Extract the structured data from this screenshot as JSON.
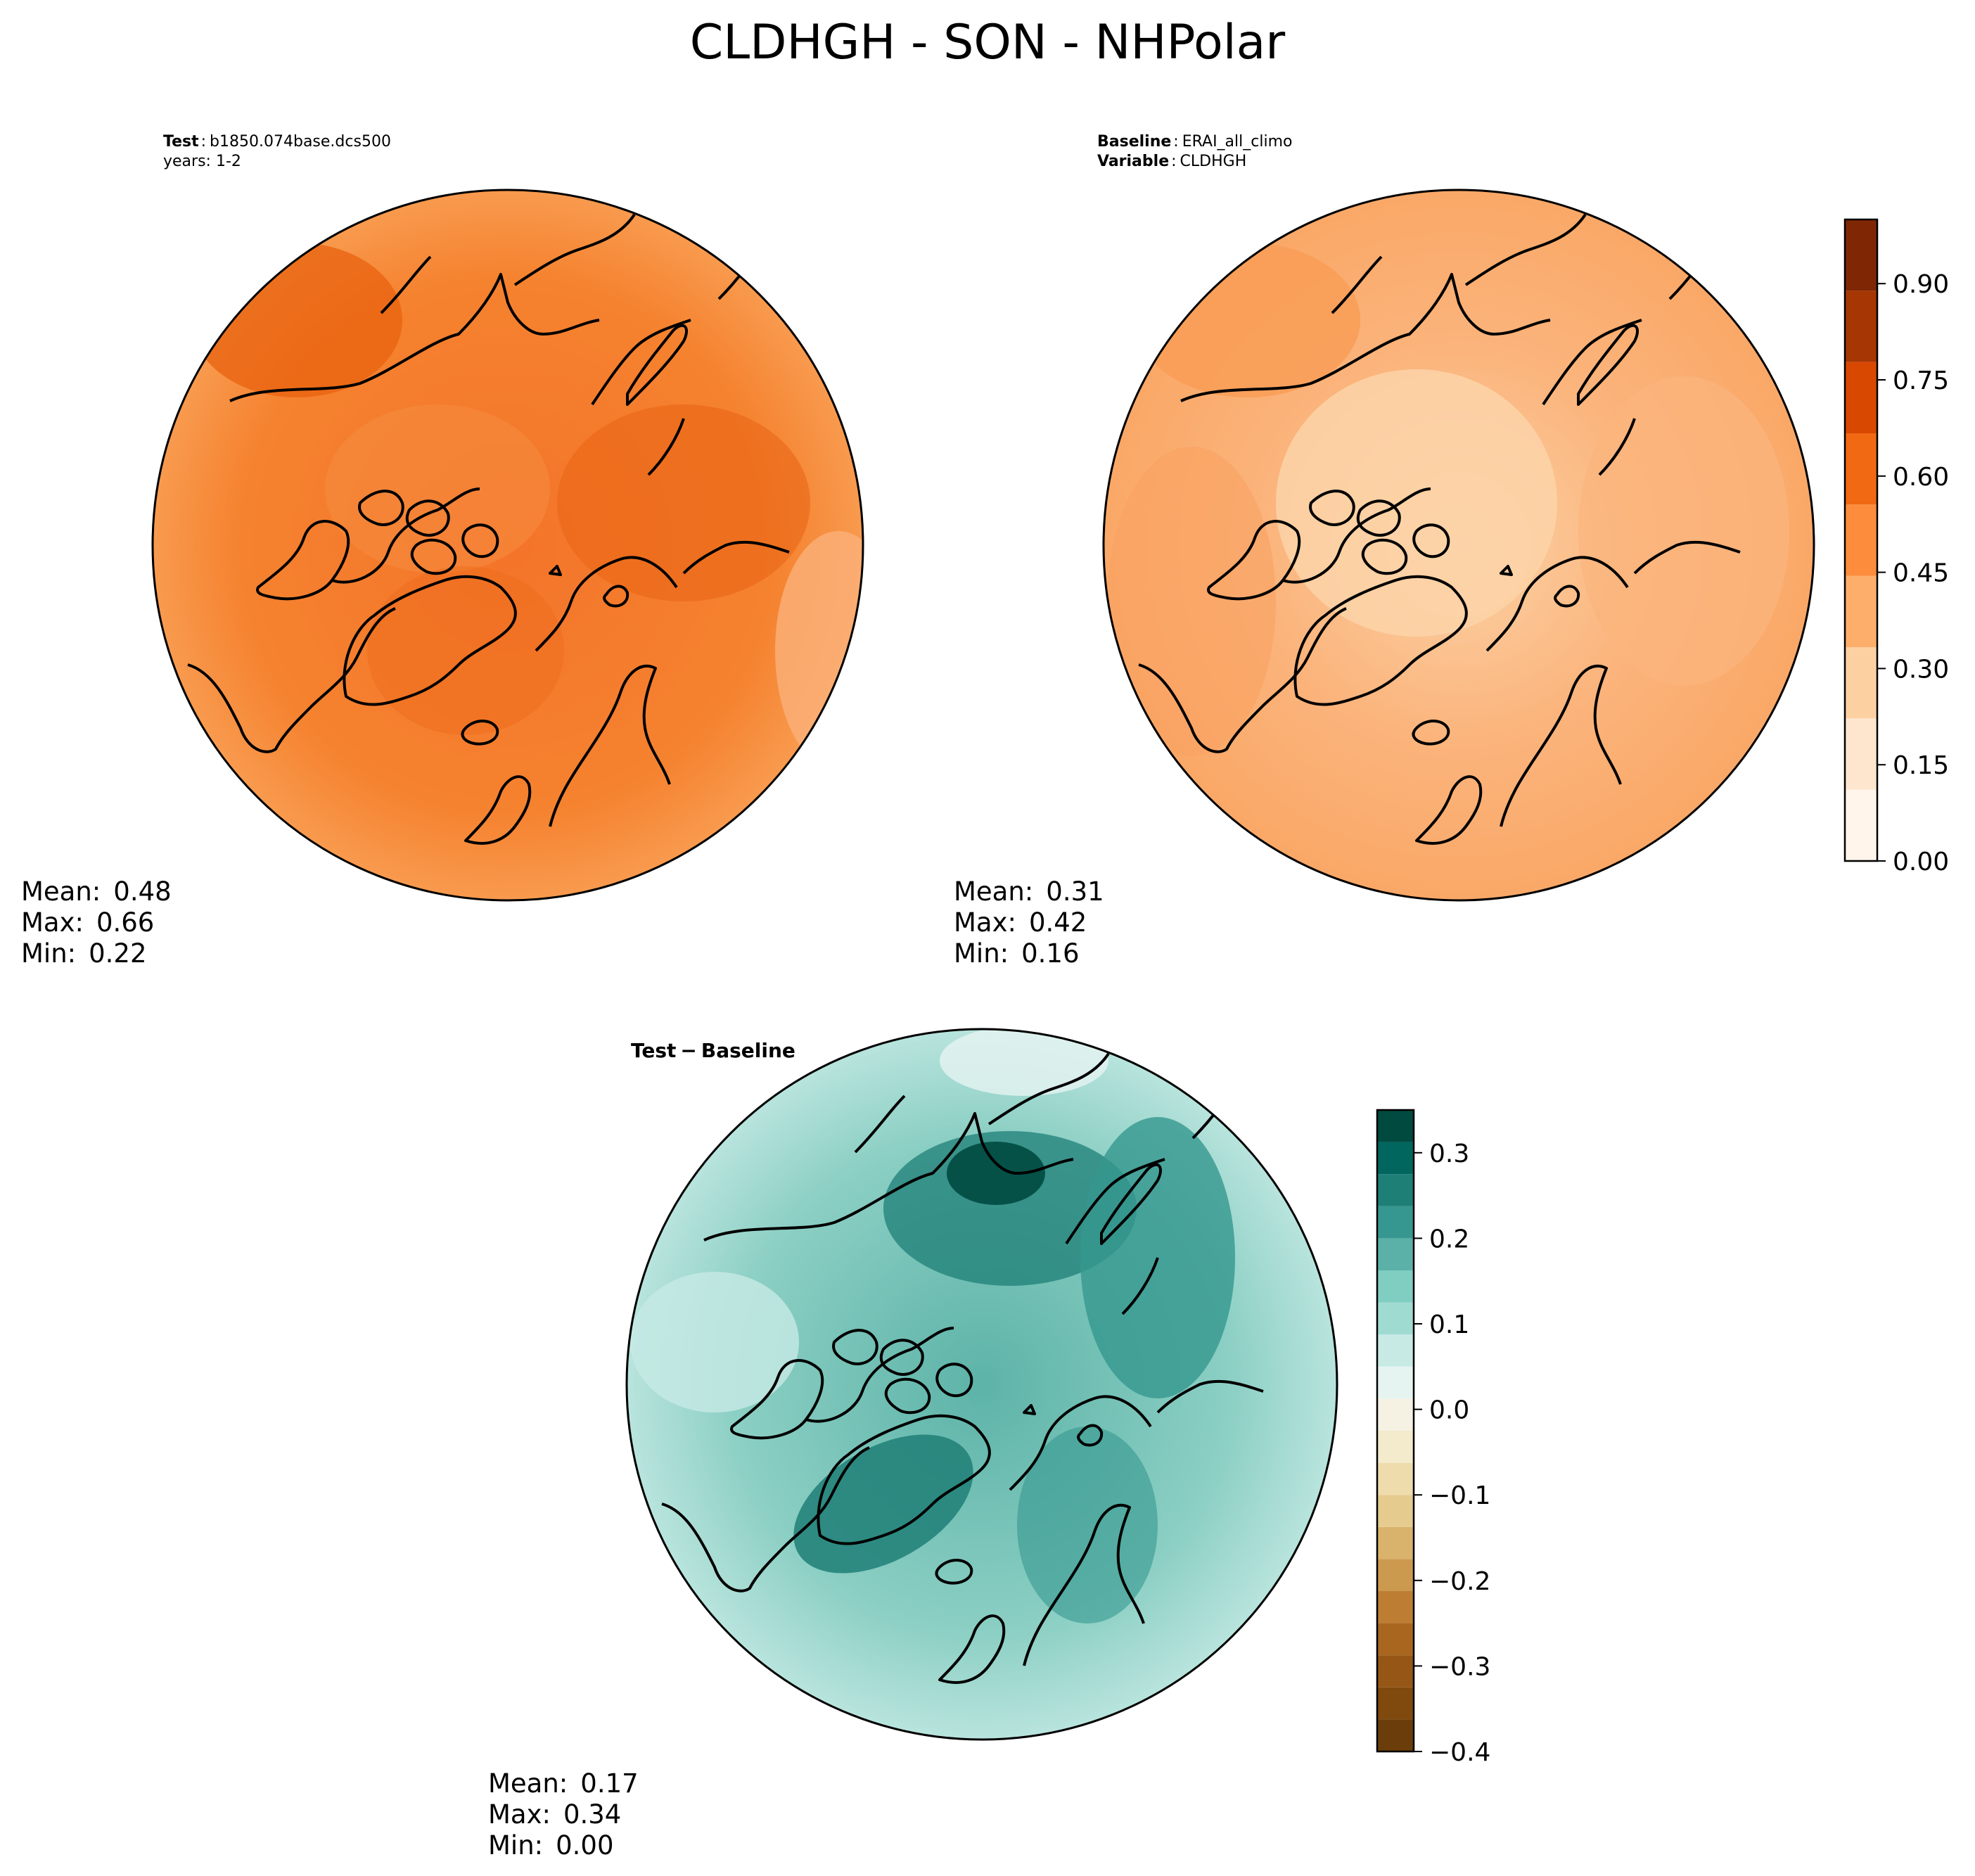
{
  "chart_data": [
    {
      "type": "heatmap",
      "projection": "north-polar-stereographic",
      "figure_title": "CLDHGH - SON - NHPolar",
      "panel": "Test",
      "header": {
        "label": "Test",
        "sep": ":",
        "case": "b1850.074base.dcs500",
        "line2": "years: 1-2"
      },
      "stats": {
        "mean_label": "Mean:",
        "mean": "0.48",
        "max_label": "Max:",
        "max": "0.66",
        "min_label": "Min:",
        "min": "0.22"
      },
      "field_range": [
        0.22,
        0.66
      ],
      "colormap": "Oranges",
      "levels": [
        0.0,
        0.05,
        0.1,
        0.15,
        0.2,
        0.25,
        0.3,
        0.35,
        0.4,
        0.45,
        0.5,
        0.55,
        0.6,
        0.65,
        0.7,
        0.75,
        0.8,
        0.85,
        0.9,
        0.95,
        1.0
      ]
    },
    {
      "type": "heatmap",
      "projection": "north-polar-stereographic",
      "panel": "Baseline",
      "header": {
        "label": "Baseline",
        "sep": ":",
        "case": "ERAI_all_climo",
        "label2": "Variable",
        "value2": "CLDHGH"
      },
      "stats": {
        "mean_label": "Mean:",
        "mean": "0.31",
        "max_label": "Max:",
        "max": "0.42",
        "min_label": "Min:",
        "min": "0.16"
      },
      "field_range": [
        0.16,
        0.42
      ],
      "colorbar": {
        "range": [
          0.0,
          1.0
        ],
        "ticks": [
          "0.00",
          "0.15",
          "0.30",
          "0.45",
          "0.60",
          "0.75",
          "0.90"
        ],
        "tick_values": [
          0.0,
          0.15,
          0.3,
          0.45,
          0.6,
          0.75,
          0.9
        ],
        "colors": [
          "#fff5eb",
          "#fee6ce",
          "#fdd0a2",
          "#fdae6b",
          "#fd8d3c",
          "#f16913",
          "#d94801",
          "#a63603",
          "#7f2704"
        ]
      }
    },
    {
      "type": "heatmap",
      "projection": "north-polar-stereographic",
      "panel": "Test - Baseline",
      "title_parts": [
        "Test",
        "−",
        "Baseline"
      ],
      "stats": {
        "mean_label": "Mean:",
        "mean": "0.17",
        "max_label": "Max:",
        "max": "0.34",
        "min_label": "Min:",
        "min": "0.00"
      },
      "field_range": [
        0.0,
        0.34
      ],
      "colorbar": {
        "range": [
          -0.4,
          0.35
        ],
        "ticks": [
          "−0.4",
          "−0.3",
          "−0.2",
          "−0.1",
          "0.0",
          "0.1",
          "0.2",
          "0.3"
        ],
        "tick_values": [
          -0.4,
          -0.3,
          -0.2,
          -0.1,
          0.0,
          0.1,
          0.2,
          0.3
        ],
        "colors": [
          "#6a3d0a",
          "#80490e",
          "#955616",
          "#a9661f",
          "#bd7e33",
          "#cc9a4f",
          "#d9b36c",
          "#e5cb8e",
          "#eedcad",
          "#f4eacc",
          "#f5f1e3",
          "#e6f4f1",
          "#c7eae5",
          "#a0dbd2",
          "#80cdc1",
          "#5bb1a7",
          "#35978f",
          "#1e7f77",
          "#01665e",
          "#004a40"
        ],
        "levels": [
          -0.4,
          -0.3625,
          -0.325,
          -0.2875,
          -0.25,
          -0.2125,
          -0.175,
          -0.1375,
          -0.1,
          -0.0625,
          -0.025,
          0.0125,
          0.05,
          0.0875,
          0.125,
          0.1625,
          0.2,
          0.2375,
          0.275,
          0.3125,
          0.35
        ]
      }
    }
  ]
}
